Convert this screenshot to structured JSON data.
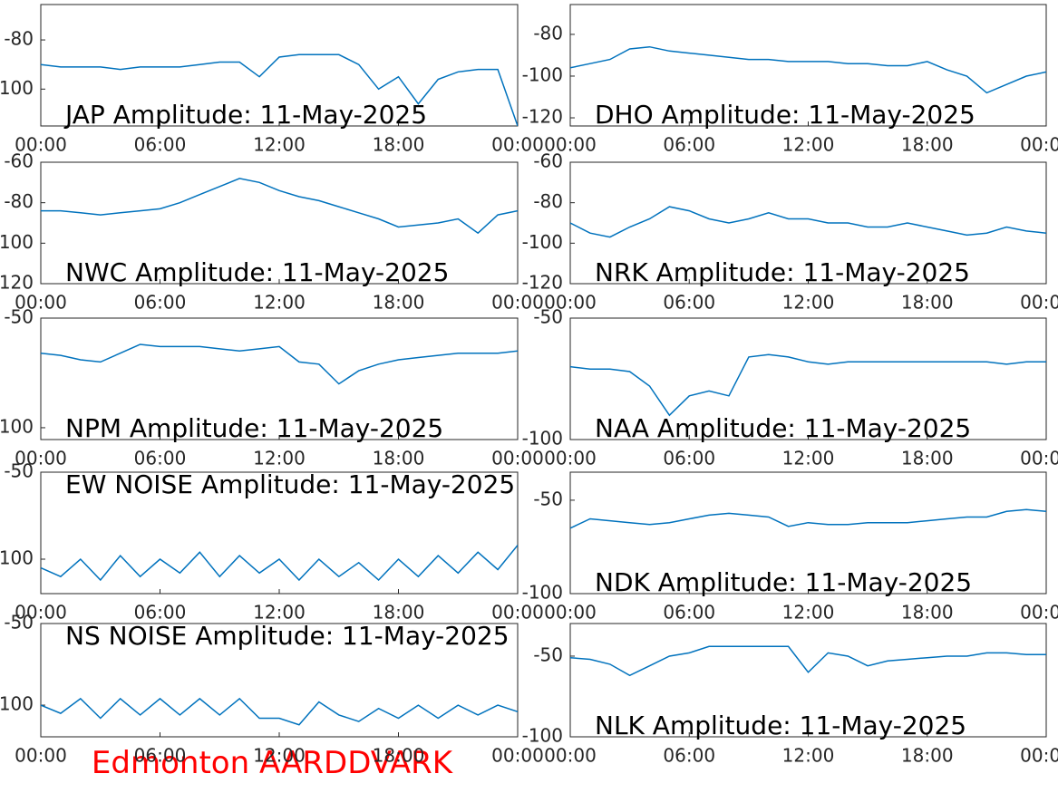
{
  "chart_data": [
    {
      "type": "line",
      "title": "JAP Amplitude: 11-May-2025",
      "x": [
        0,
        1,
        2,
        3,
        4,
        5,
        6,
        7,
        8,
        9,
        10,
        11,
        12,
        13,
        14,
        15,
        16,
        17,
        18,
        19,
        20,
        21,
        22,
        23,
        24
      ],
      "series": [
        {
          "color": "#0072bd",
          "values": [
            -90,
            -91,
            -91,
            -91,
            -92,
            -91,
            -91,
            -91,
            -90,
            -89,
            -89,
            -95,
            -87,
            -86,
            -86,
            -86,
            -90,
            -100,
            -95,
            -106,
            -96,
            -93,
            -92,
            -92,
            -115
          ]
        }
      ],
      "xlim": [
        0,
        24
      ],
      "xticks": [
        {
          "value": 0,
          "label": "00:00"
        },
        {
          "value": 6,
          "label": "06:00"
        },
        {
          "value": 12,
          "label": "12:00"
        },
        {
          "value": 18,
          "label": "18:00"
        },
        {
          "value": 24,
          "label": "00:00"
        }
      ],
      "ylim": [
        -115,
        -65.6
      ],
      "yticks": [
        -100,
        -80
      ]
    },
    {
      "type": "line",
      "title": "DHO Amplitude: 11-May-2025",
      "x": [
        0,
        1,
        2,
        3,
        4,
        5,
        6,
        7,
        8,
        9,
        10,
        11,
        12,
        13,
        14,
        15,
        16,
        17,
        18,
        19,
        20,
        21,
        22,
        23,
        24
      ],
      "series": [
        {
          "color": "#0072bd",
          "values": [
            -96,
            -94,
            -92,
            -87,
            -86,
            -88,
            -89,
            -90,
            -91,
            -92,
            -92,
            -93,
            -93,
            -93,
            -94,
            -94,
            -95,
            -95,
            -93,
            -97,
            -100,
            -108,
            -104,
            -100,
            -98
          ]
        }
      ],
      "xlim": [
        0,
        24
      ],
      "xticks": [
        {
          "value": 0,
          "label": "00:00"
        },
        {
          "value": 6,
          "label": "06:00"
        },
        {
          "value": 12,
          "label": "12:00"
        },
        {
          "value": 18,
          "label": "18:00"
        },
        {
          "value": 24,
          "label": "00:00"
        }
      ],
      "ylim": [
        -123.9,
        -65.7
      ],
      "yticks": [
        -120,
        -100,
        -80
      ]
    },
    {
      "type": "line",
      "title": "NWC Amplitude: 11-May-2025",
      "x": [
        0,
        1,
        2,
        3,
        4,
        5,
        6,
        7,
        8,
        9,
        10,
        11,
        12,
        13,
        14,
        15,
        16,
        17,
        18,
        19,
        20,
        21,
        22,
        23,
        24
      ],
      "series": [
        {
          "color": "#0072bd",
          "values": [
            -84,
            -84,
            -85,
            -86,
            -85,
            -84,
            -83,
            -80,
            -76,
            -72,
            -68,
            -70,
            -74,
            -77,
            -79,
            -82,
            -85,
            -88,
            -92,
            -91,
            -90,
            -88,
            -95,
            -86,
            -84
          ]
        }
      ],
      "xlim": [
        0,
        24
      ],
      "xticks": [
        {
          "value": 0,
          "label": "00:00"
        },
        {
          "value": 6,
          "label": "06:00"
        },
        {
          "value": 12,
          "label": "12:00"
        },
        {
          "value": 18,
          "label": "18:00"
        },
        {
          "value": 24,
          "label": "00:00"
        }
      ],
      "ylim": [
        -120,
        -60
      ],
      "yticks": [
        -120,
        -100,
        -80,
        -60
      ]
    },
    {
      "type": "line",
      "title": "NRK Amplitude: 11-May-2025",
      "x": [
        0,
        1,
        2,
        3,
        4,
        5,
        6,
        7,
        8,
        9,
        10,
        11,
        12,
        13,
        14,
        15,
        16,
        17,
        18,
        19,
        20,
        21,
        22,
        23,
        24
      ],
      "series": [
        {
          "color": "#0072bd",
          "values": [
            -90,
            -95,
            -97,
            -92,
            -88,
            -82,
            -84,
            -88,
            -90,
            -88,
            -85,
            -88,
            -88,
            -90,
            -90,
            -92,
            -92,
            -90,
            -92,
            -94,
            -96,
            -95,
            -92,
            -94,
            -95
          ]
        }
      ],
      "xlim": [
        0,
        24
      ],
      "xticks": [
        {
          "value": 0,
          "label": "00:00"
        },
        {
          "value": 6,
          "label": "06:00"
        },
        {
          "value": 12,
          "label": "12:00"
        },
        {
          "value": 18,
          "label": "18:00"
        },
        {
          "value": 24,
          "label": "00:00"
        }
      ],
      "ylim": [
        -120,
        -60
      ],
      "yticks": [
        -120,
        -100,
        -80,
        -60
      ]
    },
    {
      "type": "line",
      "title": "NPM Amplitude: 11-May-2025",
      "x": [
        0,
        1,
        2,
        3,
        4,
        5,
        6,
        7,
        8,
        9,
        10,
        11,
        12,
        13,
        14,
        15,
        16,
        17,
        18,
        19,
        20,
        21,
        22,
        23,
        24
      ],
      "series": [
        {
          "color": "#0072bd",
          "values": [
            -66,
            -67,
            -69,
            -70,
            -66,
            -62,
            -63,
            -63,
            -63,
            -64,
            -65,
            -64,
            -63,
            -70,
            -71,
            -80,
            -74,
            -71,
            -69,
            -68,
            -67,
            -66,
            -66,
            -66,
            -65
          ]
        }
      ],
      "xlim": [
        0,
        24
      ],
      "xticks": [
        {
          "value": 0,
          "label": "00:00"
        },
        {
          "value": 6,
          "label": "06:00"
        },
        {
          "value": 12,
          "label": "12:00"
        },
        {
          "value": 18,
          "label": "18:00"
        },
        {
          "value": 24,
          "label": "00:00"
        }
      ],
      "ylim": [
        -105.4,
        -50
      ],
      "yticks": [
        -100,
        -50
      ]
    },
    {
      "type": "line",
      "title": "NAA Amplitude: 11-May-2025",
      "x": [
        0,
        1,
        2,
        3,
        4,
        5,
        6,
        7,
        8,
        9,
        10,
        11,
        12,
        13,
        14,
        15,
        16,
        17,
        18,
        19,
        20,
        21,
        22,
        23,
        24
      ],
      "series": [
        {
          "color": "#0072bd",
          "values": [
            -70,
            -71,
            -71,
            -72,
            -78,
            -90,
            -82,
            -80,
            -82,
            -66,
            -65,
            -66,
            -68,
            -69,
            -68,
            -68,
            -68,
            -68,
            -68,
            -68,
            -68,
            -68,
            -69,
            -68,
            -68
          ]
        }
      ],
      "xlim": [
        0,
        24
      ],
      "xticks": [
        {
          "value": 0,
          "label": "00:00"
        },
        {
          "value": 6,
          "label": "06:00"
        },
        {
          "value": 12,
          "label": "12:00"
        },
        {
          "value": 18,
          "label": "18:00"
        },
        {
          "value": 24,
          "label": "00:00"
        }
      ],
      "ylim": [
        -100,
        -50
      ],
      "yticks": [
        -100,
        -50
      ]
    },
    {
      "type": "line",
      "title": "EW NOISE Amplitude: 11-May-2025",
      "x": [
        0,
        1,
        2,
        3,
        4,
        5,
        6,
        7,
        8,
        9,
        10,
        11,
        12,
        13,
        14,
        15,
        16,
        17,
        18,
        19,
        20,
        21,
        22,
        23,
        24
      ],
      "series": [
        {
          "color": "#0072bd",
          "values": [
            -105,
            -110,
            -100,
            -112,
            -98,
            -110,
            -100,
            -108,
            -96,
            -110,
            -98,
            -108,
            -100,
            -112,
            -100,
            -110,
            -102,
            -112,
            -100,
            -110,
            -98,
            -108,
            -96,
            -106,
            -92
          ]
        }
      ],
      "xlim": [
        0,
        24
      ],
      "xticks": [
        {
          "value": 0,
          "label": "00:00"
        },
        {
          "value": 6,
          "label": "06:00"
        },
        {
          "value": 12,
          "label": "12:00"
        },
        {
          "value": 18,
          "label": "18:00"
        },
        {
          "value": 24,
          "label": "00:00"
        }
      ],
      "ylim": [
        -119.8,
        -50
      ],
      "yticks": [
        -100,
        -50
      ]
    },
    {
      "type": "line",
      "title": "NDK Amplitude: 11-May-2025",
      "x": [
        0,
        1,
        2,
        3,
        4,
        5,
        6,
        7,
        8,
        9,
        10,
        11,
        12,
        13,
        14,
        15,
        16,
        17,
        18,
        19,
        20,
        21,
        22,
        23,
        24
      ],
      "series": [
        {
          "color": "#0072bd",
          "values": [
            -65,
            -60,
            -61,
            -62,
            -63,
            -62,
            -60,
            -58,
            -57,
            -58,
            -59,
            -64,
            -62,
            -63,
            -63,
            -62,
            -62,
            -62,
            -61,
            -60,
            -59,
            -59,
            -56,
            -55,
            -56
          ]
        }
      ],
      "xlim": [
        0,
        24
      ],
      "xticks": [
        {
          "value": 0,
          "label": "00:00"
        },
        {
          "value": 6,
          "label": "06:00"
        },
        {
          "value": 12,
          "label": "12:00"
        },
        {
          "value": 18,
          "label": "18:00"
        },
        {
          "value": 24,
          "label": "00:00"
        }
      ],
      "ylim": [
        -100,
        -35
      ],
      "yticks": [
        -100,
        -50
      ]
    },
    {
      "type": "line",
      "title": "NS NOISE Amplitude: 11-May-2025",
      "x": [
        0,
        1,
        2,
        3,
        4,
        5,
        6,
        7,
        8,
        9,
        10,
        11,
        12,
        13,
        14,
        15,
        16,
        17,
        18,
        19,
        20,
        21,
        22,
        23,
        24
      ],
      "series": [
        {
          "color": "#0072bd",
          "values": [
            -100,
            -105,
            -96,
            -108,
            -96,
            -106,
            -96,
            -106,
            -96,
            -106,
            -96,
            -108,
            -108,
            -112,
            -98,
            -106,
            -110,
            -102,
            -108,
            -100,
            -108,
            -100,
            -106,
            -100,
            -104
          ]
        }
      ],
      "xlim": [
        0,
        24
      ],
      "xticks": [
        {
          "value": 0,
          "label": "00:00"
        },
        {
          "value": 6,
          "label": "06:00"
        },
        {
          "value": 12,
          "label": "12:00"
        },
        {
          "value": 18,
          "label": "18:00"
        },
        {
          "value": 24,
          "label": "00:00"
        }
      ],
      "ylim": [
        -119.4,
        -50
      ],
      "yticks": [
        -100,
        -50
      ]
    },
    {
      "type": "line",
      "title": "NLK Amplitude: 11-May-2025",
      "x": [
        0,
        1,
        2,
        3,
        4,
        5,
        6,
        7,
        8,
        9,
        10,
        11,
        12,
        13,
        14,
        15,
        16,
        17,
        18,
        19,
        20,
        21,
        22,
        23,
        24
      ],
      "series": [
        {
          "color": "#0072bd",
          "values": [
            -51,
            -52,
            -55,
            -62,
            -56,
            -50,
            -48,
            -44,
            -44,
            -44,
            -44,
            -44,
            -60,
            -48,
            -50,
            -56,
            -53,
            -52,
            -51,
            -50,
            -50,
            -48,
            -48,
            -49,
            -49
          ]
        }
      ],
      "xlim": [
        0,
        24
      ],
      "xticks": [
        {
          "value": 0,
          "label": "00:00"
        },
        {
          "value": 6,
          "label": "06:00"
        },
        {
          "value": 12,
          "label": "12:00"
        },
        {
          "value": 18,
          "label": "18:00"
        },
        {
          "value": 24,
          "label": "00:00"
        }
      ],
      "ylim": [
        -100,
        -29.8
      ],
      "yticks": [
        -100,
        -50
      ]
    }
  ],
  "footer_text": "Edmonton AARDDVARK"
}
